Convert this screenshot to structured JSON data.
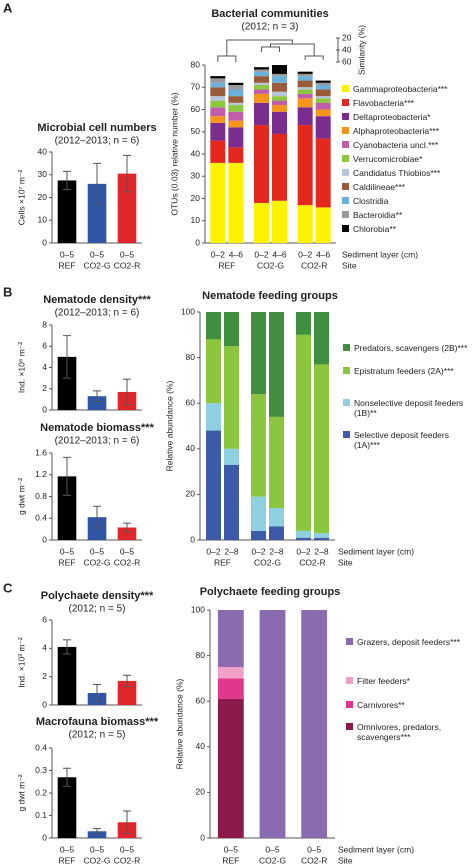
{
  "panels": [
    "A",
    "B",
    "C"
  ],
  "chart_data": [
    {
      "type": "bar",
      "title": "Microbial cell numbers",
      "subtitle": "(2012–2013; n = 6)",
      "ylabel": "Cells ×10⁷ m⁻²",
      "categories": [
        "0–5",
        "0–5",
        "0–5"
      ],
      "groups": [
        "REF",
        "CO2-G",
        "CO2-R"
      ],
      "values": [
        27.5,
        26,
        30.5
      ],
      "errors": [
        4,
        9,
        8
      ],
      "colors": [
        "#000000",
        "#2f56a6",
        "#e0252b"
      ],
      "ylim": [
        0,
        40
      ],
      "yticks": [
        0,
        10,
        20,
        30,
        40
      ]
    },
    {
      "type": "stacked_bar",
      "title": "Bacterial communities",
      "subtitle": "(2012; n = 3)",
      "ylabel": "OTUs (0.03) relative number (%)",
      "categories": [
        "0–2",
        "4–6",
        "0–2",
        "4–6",
        "0–2",
        "4–6"
      ],
      "groups": [
        "REF",
        "CO2-G",
        "CO2-R"
      ],
      "x_labels": [
        "Sediment layer (cm)",
        "Site"
      ],
      "similarity": {
        "label": "Similarity (%)",
        "lim": [
          20,
          60
        ],
        "ticks": [
          20,
          40,
          60
        ]
      },
      "ylim": [
        0,
        80
      ],
      "yticks": [
        0,
        10,
        20,
        30,
        40,
        50,
        60,
        70,
        80
      ],
      "series": [
        {
          "name": "Gammaproteobacteria***",
          "color": "#fff200",
          "values": [
            36,
            36,
            18,
            19,
            17,
            16
          ]
        },
        {
          "name": "Flavobacteria***",
          "color": "#e3281e",
          "values": [
            10,
            7,
            35,
            30,
            36,
            31
          ]
        },
        {
          "name": "Deltaproteobacteria*",
          "color": "#7b2d8e",
          "values": [
            8,
            9,
            10,
            10,
            8,
            10
          ]
        },
        {
          "name": "Alphaproteobacteria***",
          "color": "#f7941d",
          "values": [
            3,
            3,
            4,
            3,
            4,
            3
          ]
        },
        {
          "name": "Cyanobacteria uncl.***",
          "color": "#c05fa8",
          "values": [
            4,
            4,
            2,
            2,
            2,
            3
          ]
        },
        {
          "name": "Verrucomicrobiae*",
          "color": "#8dc63f",
          "values": [
            3,
            3,
            2,
            2,
            2,
            2
          ]
        },
        {
          "name": "Candidatus Thiobios***",
          "color": "#b8c6dc",
          "values": [
            2,
            1,
            1,
            2,
            1,
            1
          ]
        },
        {
          "name": "Caldilineae***",
          "color": "#9a5b3a",
          "values": [
            4,
            3,
            3,
            4,
            3,
            3
          ]
        },
        {
          "name": "Clostridia",
          "color": "#6ab0d8",
          "values": [
            2,
            3,
            2,
            3,
            2,
            2
          ]
        },
        {
          "name": "Bacteroidia**",
          "color": "#9a9a9a",
          "values": [
            2,
            2,
            1,
            1,
            1,
            1
          ]
        },
        {
          "name": "Chlorobia**",
          "color": "#000000",
          "values": [
            1,
            1,
            1,
            4,
            1,
            1
          ]
        }
      ]
    },
    {
      "type": "bar",
      "title": "Nematode density***",
      "subtitle": "(2012–2013; n = 6)",
      "ylabel": "Ind. ×10⁶ m⁻²",
      "values": [
        5,
        1.3,
        1.7
      ],
      "errors": [
        2,
        0.5,
        1.2
      ],
      "colors": [
        "#000000",
        "#2f56a6",
        "#e0252b"
      ],
      "ylim": [
        0,
        8
      ],
      "yticks": [
        0,
        2,
        4,
        6,
        8
      ]
    },
    {
      "type": "bar",
      "title": "Nematode biomass***",
      "subtitle": "(2012–2013; n = 6)",
      "ylabel": "g dwt m⁻²",
      "categories": [
        "0–5",
        "0–5",
        "0–5"
      ],
      "groups": [
        "REF",
        "CO2-G",
        "CO2-R"
      ],
      "values": [
        1.17,
        0.42,
        0.23
      ],
      "errors": [
        0.35,
        0.2,
        0.08
      ],
      "colors": [
        "#000000",
        "#2f56a6",
        "#e0252b"
      ],
      "ylim": [
        0,
        1.6
      ],
      "yticks": [
        0,
        0.4,
        0.8,
        1.2,
        1.6
      ]
    },
    {
      "type": "stacked_bar",
      "title": "Nematode feeding groups",
      "ylabel": "Relative abundance (%)",
      "categories": [
        "0–2",
        "2–8",
        "0–2",
        "2–8",
        "0–2",
        "2–8"
      ],
      "groups": [
        "REF",
        "CO2-G",
        "CO2-R"
      ],
      "x_labels": [
        "Sediment layer (cm)",
        "Site"
      ],
      "ylim": [
        0,
        100
      ],
      "yticks": [
        0,
        20,
        40,
        60,
        80,
        100
      ],
      "series": [
        {
          "name": "Selective deposit feeders (1A)***",
          "color": "#3d5aa8",
          "values": [
            48,
            33,
            4,
            6,
            1,
            1
          ]
        },
        {
          "name": "Nonselective deposit feeders (1B)**",
          "color": "#8ecfe0",
          "values": [
            12,
            7,
            15,
            8,
            3,
            2
          ]
        },
        {
          "name": "Epistratum feeders (2A)***",
          "color": "#8cc63f",
          "values": [
            28,
            45,
            45,
            40,
            86,
            74
          ]
        },
        {
          "name": "Predators, scavengers (2B)***",
          "color": "#3f8f3f",
          "values": [
            12,
            15,
            36,
            46,
            10,
            23
          ]
        }
      ]
    },
    {
      "type": "bar",
      "title": "Polychaete density***",
      "subtitle": "(2012; n = 5)",
      "ylabel": "Ind. ×10³ m⁻²",
      "values": [
        4.1,
        0.85,
        1.7
      ],
      "errors": [
        0.5,
        0.6,
        0.4
      ],
      "colors": [
        "#000000",
        "#2f56a6",
        "#e0252b"
      ],
      "ylim": [
        0,
        6
      ],
      "yticks": [
        0,
        2,
        4,
        6
      ]
    },
    {
      "type": "bar",
      "title": "Macrofauna biomass***",
      "subtitle": "(2012; n = 5)",
      "ylabel": "g dwt m⁻²",
      "categories": [
        "0–5",
        "0–5",
        "0–5"
      ],
      "groups": [
        "REF",
        "CO2-G",
        "CO2-R"
      ],
      "values": [
        0.27,
        0.03,
        0.07
      ],
      "errors": [
        0.04,
        0.012,
        0.05
      ],
      "colors": [
        "#000000",
        "#2f56a6",
        "#e0252b"
      ],
      "ylim": [
        0,
        0.4
      ],
      "yticks": [
        0,
        0.1,
        0.2,
        0.3,
        0.4
      ]
    },
    {
      "type": "stacked_bar",
      "title": "Polychaete feeding groups",
      "ylabel": "Relative abundance (%)",
      "categories": [
        "0–5",
        "0–5",
        "0–5"
      ],
      "groups": [
        "REF",
        "CO2-G",
        "CO2-R"
      ],
      "x_labels": [
        "Sediment layer (cm)",
        "Site"
      ],
      "ylim": [
        0,
        100
      ],
      "yticks": [
        0,
        20,
        40,
        60,
        80,
        100
      ],
      "series": [
        {
          "name": "Omnivores, predators, scavengers***",
          "color": "#8b1a4a",
          "values": [
            61,
            0,
            0
          ]
        },
        {
          "name": "Carnivores**",
          "color": "#e0368c",
          "values": [
            9,
            0,
            0
          ]
        },
        {
          "name": "Filter feeders*",
          "color": "#f0a0c8",
          "values": [
            5,
            0,
            0
          ]
        },
        {
          "name": "Grazers, deposit feeders***",
          "color": "#8a6bb0",
          "values": [
            25,
            100,
            100
          ]
        }
      ]
    }
  ]
}
